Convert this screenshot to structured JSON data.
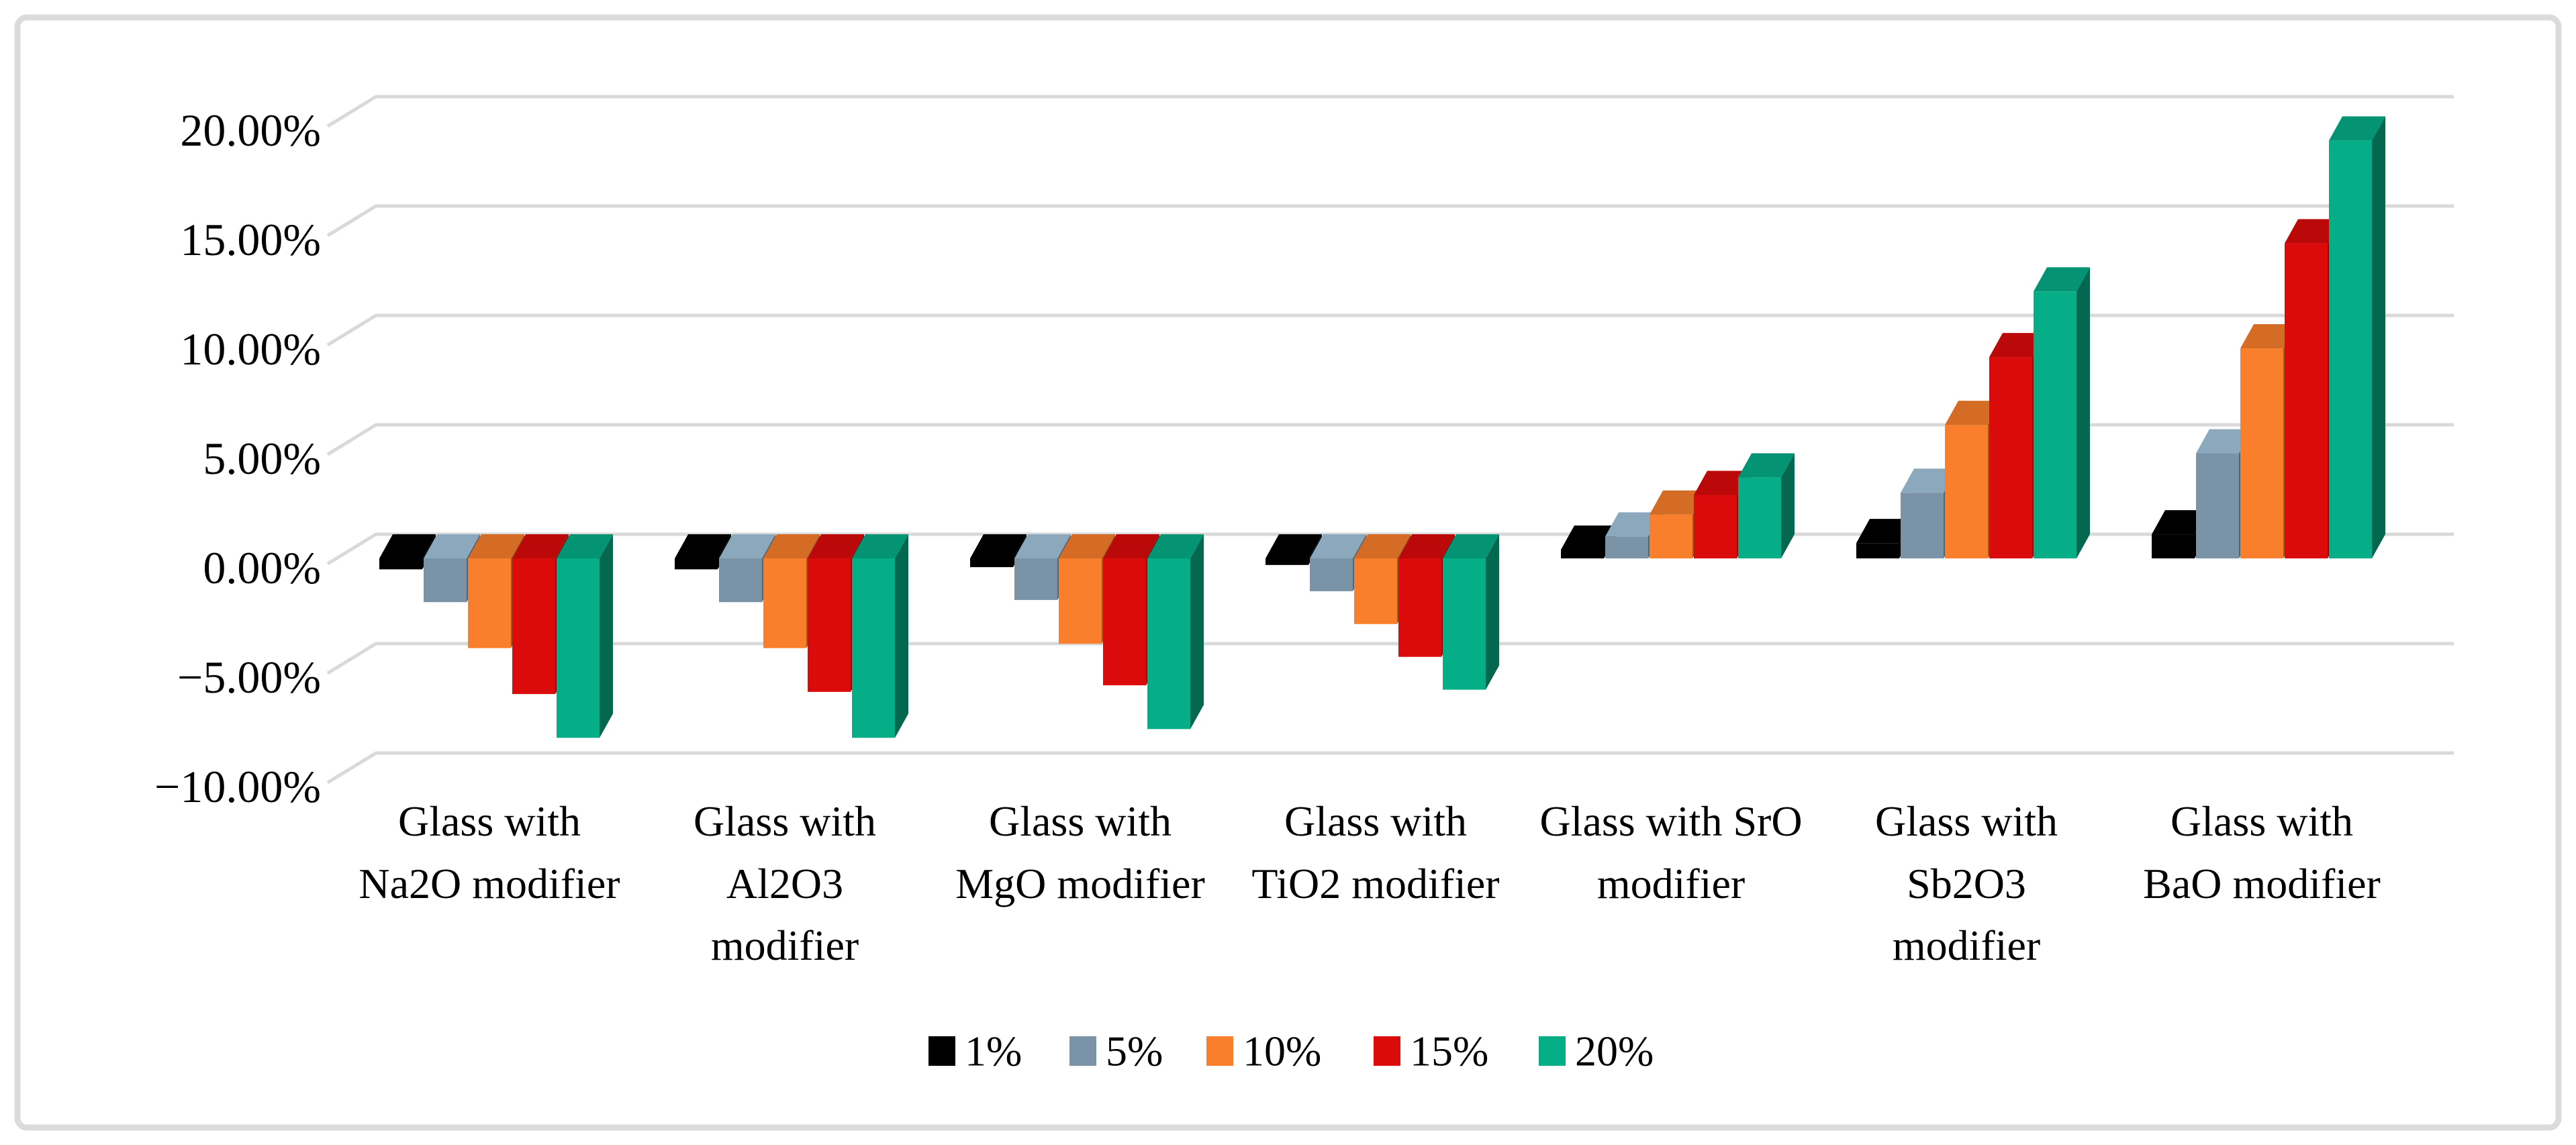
{
  "chart_data": {
    "type": "bar",
    "style": "3d-clustered-column",
    "title": "",
    "xlabel": "",
    "ylabel": "",
    "y_unit": "percent",
    "ylim": [
      -10,
      20
    ],
    "grid": true,
    "legend_position": "bottom",
    "background_color": "#ffffff",
    "frame_border_color": "#dbdbdb",
    "gridline_color": "#d9d9d9",
    "y_ticks": [
      "20.00%",
      "15.00%",
      "10.00%",
      "5.00%",
      "0.00%",
      "−5.00%",
      "−10.00%"
    ],
    "y_tick_values": [
      20,
      15,
      10,
      5,
      0,
      -5,
      -10
    ],
    "categories": [
      "Glass with Na2O modifier",
      "Glass with Al2O3 modifier",
      "Glass with MgO modifier",
      "Glass with TiO2 modifier",
      "Glass with SrO modifier",
      "Glass with Sb2O3 modifier",
      "Glass with BaO modifier"
    ],
    "category_lines": [
      [
        "Glass with",
        "Na2O modifier"
      ],
      [
        "Glass with",
        "Al2O3",
        "modifier"
      ],
      [
        "Glass with",
        "MgO modifier"
      ],
      [
        "Glass with",
        "TiO2 modifier"
      ],
      [
        "Glass with SrO",
        "modifier"
      ],
      [
        "Glass with",
        "Sb2O3",
        "modifier"
      ],
      [
        "Glass with",
        "BaO modifier"
      ]
    ],
    "series": [
      {
        "name": "1%",
        "color": "#000000",
        "values": [
          -0.5,
          -0.5,
          -0.4,
          -0.3,
          0.4,
          0.7,
          1.1
        ]
      },
      {
        "name": "5%",
        "color": "#7A93A6",
        "values": [
          -2.0,
          -2.0,
          -1.9,
          -1.5,
          1.0,
          3.0,
          4.8
        ]
      },
      {
        "name": "10%",
        "color": "#F97F2C",
        "values": [
          -4.1,
          -4.1,
          -3.9,
          -3.0,
          2.0,
          6.1,
          9.6
        ]
      },
      {
        "name": "15%",
        "color": "#DC0B0B",
        "values": [
          -6.2,
          -6.1,
          -5.8,
          -4.5,
          2.9,
          9.2,
          14.4
        ]
      },
      {
        "name": "20%",
        "color": "#06AE87",
        "values": [
          -8.2,
          -8.2,
          -7.8,
          -6.0,
          3.7,
          12.2,
          19.1
        ]
      }
    ]
  }
}
